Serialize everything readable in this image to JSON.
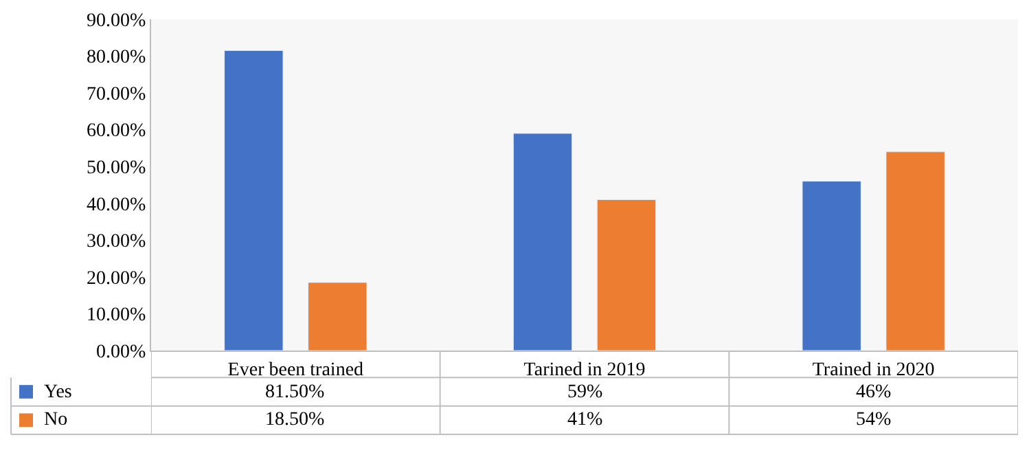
{
  "chart_data": {
    "type": "bar",
    "categories": [
      "Ever been trained",
      "Tarined in 2019",
      "Trained in 2020"
    ],
    "series": [
      {
        "name": "Yes",
        "color": "#4472c4",
        "values": [
          81.5,
          59,
          46
        ],
        "value_labels": [
          "81.50%",
          "59%",
          "46%"
        ]
      },
      {
        "name": "No",
        "color": "#ed7d31",
        "values": [
          18.5,
          41,
          54
        ],
        "value_labels": [
          "18.50%",
          "41%",
          "54%"
        ]
      }
    ],
    "ylim": [
      0,
      90
    ],
    "yticks": [
      {
        "value": 0,
        "label": "0.00%"
      },
      {
        "value": 10,
        "label": "10.00%"
      },
      {
        "value": 20,
        "label": "20.00%"
      },
      {
        "value": 30,
        "label": "30.00%"
      },
      {
        "value": 40,
        "label": "40.00%"
      },
      {
        "value": 50,
        "label": "50.00%"
      },
      {
        "value": 60,
        "label": "60.00%"
      },
      {
        "value": 70,
        "label": "70.00%"
      },
      {
        "value": 80,
        "label": "80.00%"
      },
      {
        "value": 90,
        "label": "90.00%"
      }
    ],
    "legend": "bottom"
  }
}
